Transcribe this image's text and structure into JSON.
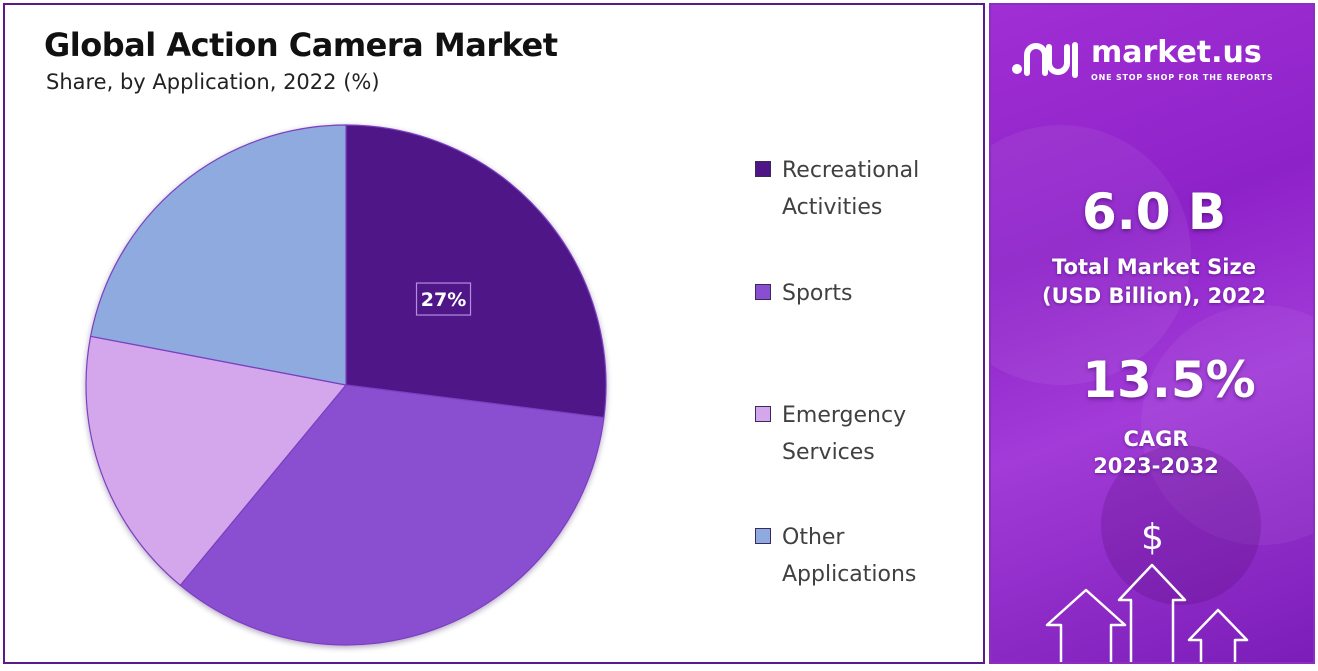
{
  "chart_data": {
    "type": "pie",
    "title": "Global Action Camera Market",
    "subtitle": "Share, by Application, 2022 (%)",
    "categories": [
      "Recreational Activities",
      "Sports",
      "Emergency Services",
      "Other Applications"
    ],
    "legend_lines": [
      [
        "Recreational",
        "Activities"
      ],
      [
        "Sports"
      ],
      [
        "Emergency",
        "Services"
      ],
      [
        "Other",
        "Applications"
      ]
    ],
    "values": [
      27,
      34,
      17,
      22
    ],
    "colors": [
      "#4f1587",
      "#8a4fd1",
      "#d4a6ec",
      "#8eaadf"
    ],
    "data_labels": [
      "27%",
      "",
      "",
      ""
    ],
    "legend_position": "right"
  },
  "sidebar": {
    "brand_name": "market.us",
    "brand_tagline": "ONE STOP SHOP FOR THE REPORTS",
    "market_size_value": "6.0 B",
    "market_size_label_line1": "Total Market Size",
    "market_size_label_line2": "(USD Billion), 2022",
    "cagr_value": "13.5%",
    "cagr_label_line1": "CAGR",
    "cagr_label_line2": "2023-2032",
    "dollar_symbol": "$",
    "icons": [
      "market-us-logo-icon",
      "dollar-icon",
      "growth-arrows-icon"
    ]
  }
}
